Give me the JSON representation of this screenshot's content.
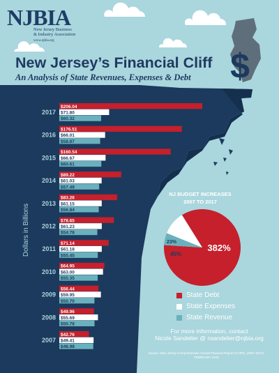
{
  "header": {
    "logo": "NJBIA",
    "logo_line1": "New Jersey Business",
    "logo_line2": "& Industry Association",
    "logo_url": "www.njbia.org",
    "title": "New Jersey’s Financial Cliff",
    "subtitle": "An Analysis of State Revenues, Expenses & Debt"
  },
  "colors": {
    "sky": "#aad6dd",
    "cliff": "#1c3a5d",
    "debt": "#c5202c",
    "expenses": "#ffffff",
    "revenue": "#6ab1bd"
  },
  "chart_data": [
    {
      "type": "bar",
      "orientation": "horizontal",
      "ylabel": "Dollars in Billions",
      "categories": [
        "2017",
        "2016",
        "2015",
        "2014",
        "2013",
        "2012",
        "2011",
        "2010",
        "2009",
        "2008",
        "2007"
      ],
      "series": [
        {
          "name": "State Debt",
          "values": [
            206.04,
            176.51,
            160.54,
            89.22,
            83.26,
            78.65,
            71.14,
            64.95,
            56.44,
            49.96,
            42.76
          ]
        },
        {
          "name": "State Expenses",
          "values": [
            71.8,
            66.01,
            66.67,
            61.03,
            61.15,
            61.23,
            61.18,
            63.0,
            59.95,
            55.69,
            49.41
          ]
        },
        {
          "name": "State Revenue",
          "values": [
            60.32,
            58.87,
            60.61,
            57.49,
            56.84,
            54.78,
            55.45,
            55.35,
            50.7,
            50.78,
            48.98
          ]
        }
      ],
      "value_labels": {
        "debt": [
          "$206.04",
          "$176.51",
          "$160.54",
          "$89.22",
          "$83.26",
          "$78.65",
          "$71.14",
          "$64.95",
          "$56.44",
          "$49.96",
          "$42.76"
        ],
        "expenses": [
          "$71.80",
          "$66.01",
          "$66.67",
          "$61.03",
          "$61.15",
          "$61.23",
          "$61.18",
          "$63.00",
          "$59.95",
          "$55.69",
          "$49.41"
        ],
        "revenue": [
          "$60.32",
          "$58.87",
          "$60.61",
          "$57.49",
          "$56.84",
          "$54.78",
          "$55.45",
          "$55.35",
          "$50.70",
          "$50.78",
          "$48.98"
        ]
      }
    },
    {
      "type": "pie",
      "title": "NJ BUDGET INCREASES",
      "subtitle": "2007 TO 2017",
      "categories": [
        "State Debt",
        "State Expenses",
        "State Revenue"
      ],
      "values": [
        382,
        45,
        23
      ],
      "labels": [
        "382%",
        "45%",
        "23%"
      ]
    }
  ],
  "legend": {
    "items": [
      {
        "label": "State Debt",
        "color": "#c5202c"
      },
      {
        "label": "State Expenses",
        "color": "#ffffff"
      },
      {
        "label": "State Revenue",
        "color": "#6ab1bd"
      }
    ]
  },
  "footer": {
    "contact_line1": "For more information, contact",
    "contact_line2": "Nicole Sandelier @ nsandelier@njbia.org",
    "source": "Source:  New Jersey Comprehensive Annual Financial Report (CAFR), (2007-2017).",
    "date": "FEBRUARY 2019"
  }
}
